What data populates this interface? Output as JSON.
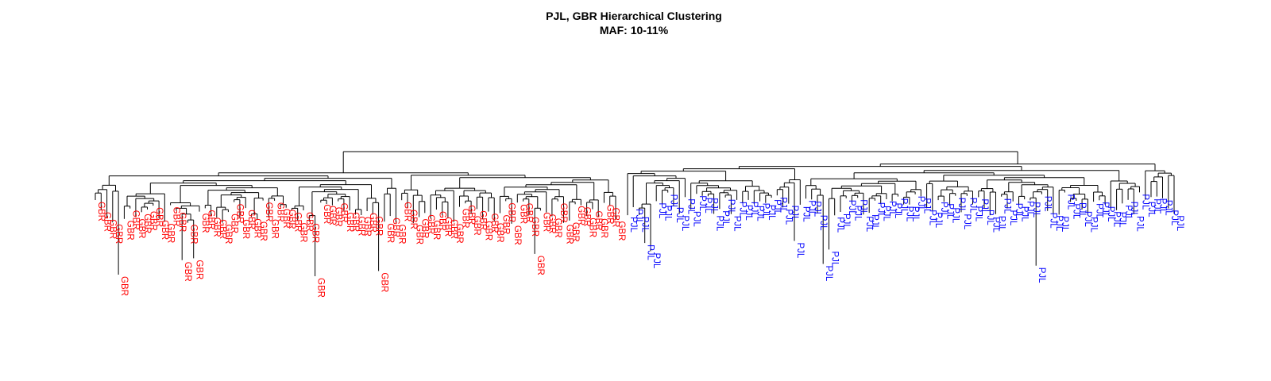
{
  "plot": {
    "title": "PJL, GBR Hierarchical Clustering",
    "subtitle": "MAF: 10-11%"
  },
  "colors": {
    "GBR": "#ff0000",
    "PJL": "#0000ff",
    "branch": "#000000"
  },
  "chart_data": {
    "type": "dendrogram",
    "groups": [
      {
        "name": "GBR",
        "color": "#ff0000",
        "leaf_label": "GBR",
        "leaf_count": 91
      },
      {
        "name": "PJL",
        "color": "#0000ff",
        "leaf_label": "PJL",
        "leaf_count": 96
      }
    ],
    "root_split": [
      "GBR",
      "PJL"
    ],
    "axes": "none",
    "legend": "none"
  }
}
